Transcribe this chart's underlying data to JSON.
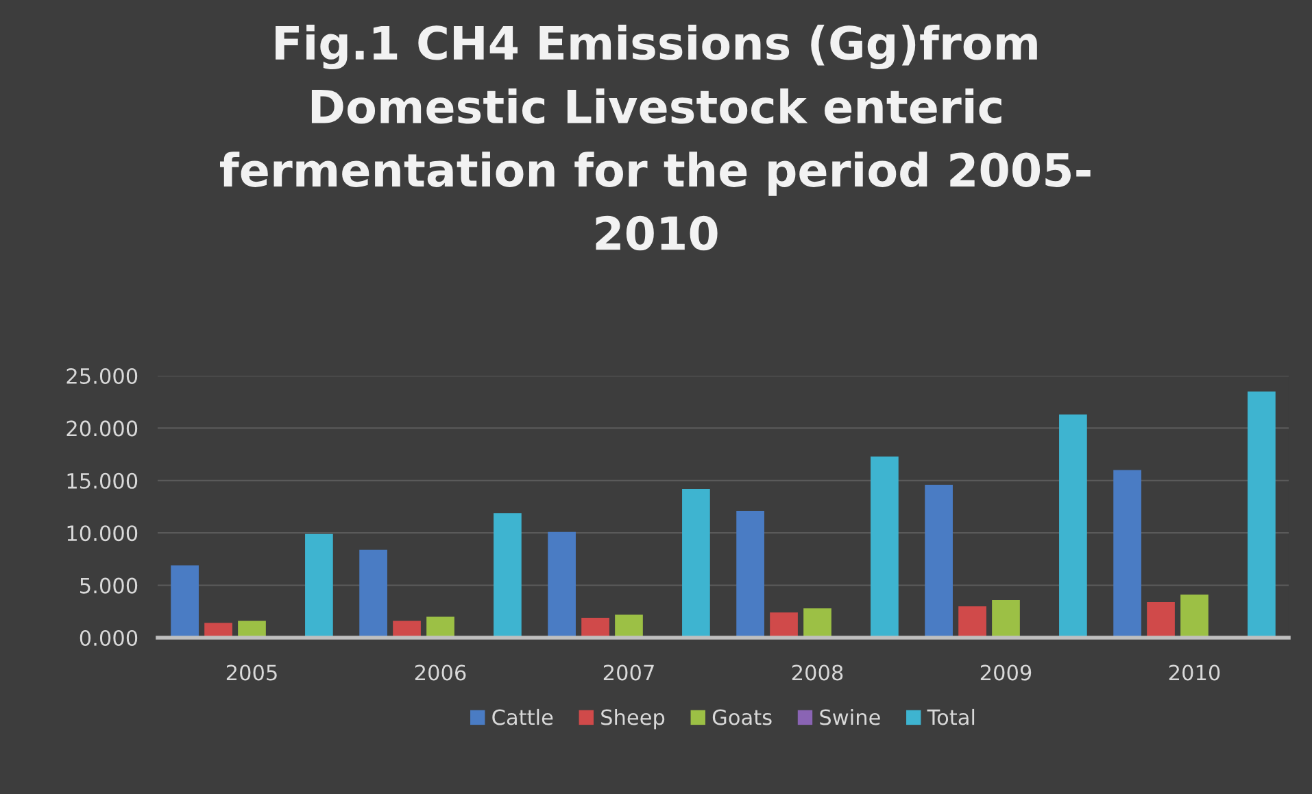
{
  "chart_data": {
    "type": "bar",
    "title": "Fig.1 CH4 Emissions (Gg)from\nDomestic Livestock enteric\nfermentation for the period 2005-\n2010",
    "categories": [
      "2005",
      "2006",
      "2007",
      "2008",
      "2009",
      "2010"
    ],
    "series": [
      {
        "name": "Cattle",
        "color": "#4a7cc4",
        "values": [
          6.9,
          8.4,
          10.1,
          12.1,
          14.6,
          16.0
        ]
      },
      {
        "name": "Sheep",
        "color": "#d04a4a",
        "values": [
          1.4,
          1.6,
          1.9,
          2.4,
          3.0,
          3.4
        ]
      },
      {
        "name": "Goats",
        "color": "#9cc045",
        "values": [
          1.6,
          2.0,
          2.2,
          2.8,
          3.6,
          4.1
        ]
      },
      {
        "name": "Swine",
        "color": "#8a64b4",
        "values": [
          0,
          0,
          0,
          0,
          0,
          0
        ]
      },
      {
        "name": "Total",
        "color": "#3eb4d0",
        "values": [
          9.9,
          11.9,
          14.2,
          17.3,
          21.3,
          23.5
        ]
      }
    ],
    "ylim": [
      0,
      25
    ],
    "yticks": [
      {
        "value": 0,
        "label": "0.000"
      },
      {
        "value": 5,
        "label": "5.000"
      },
      {
        "value": 10,
        "label": "10.000"
      },
      {
        "value": 15,
        "label": "15.000"
      },
      {
        "value": 20,
        "label": "20.000"
      },
      {
        "value": 25,
        "label": "25.000"
      }
    ],
    "grid": "y",
    "legend": "bottom"
  }
}
